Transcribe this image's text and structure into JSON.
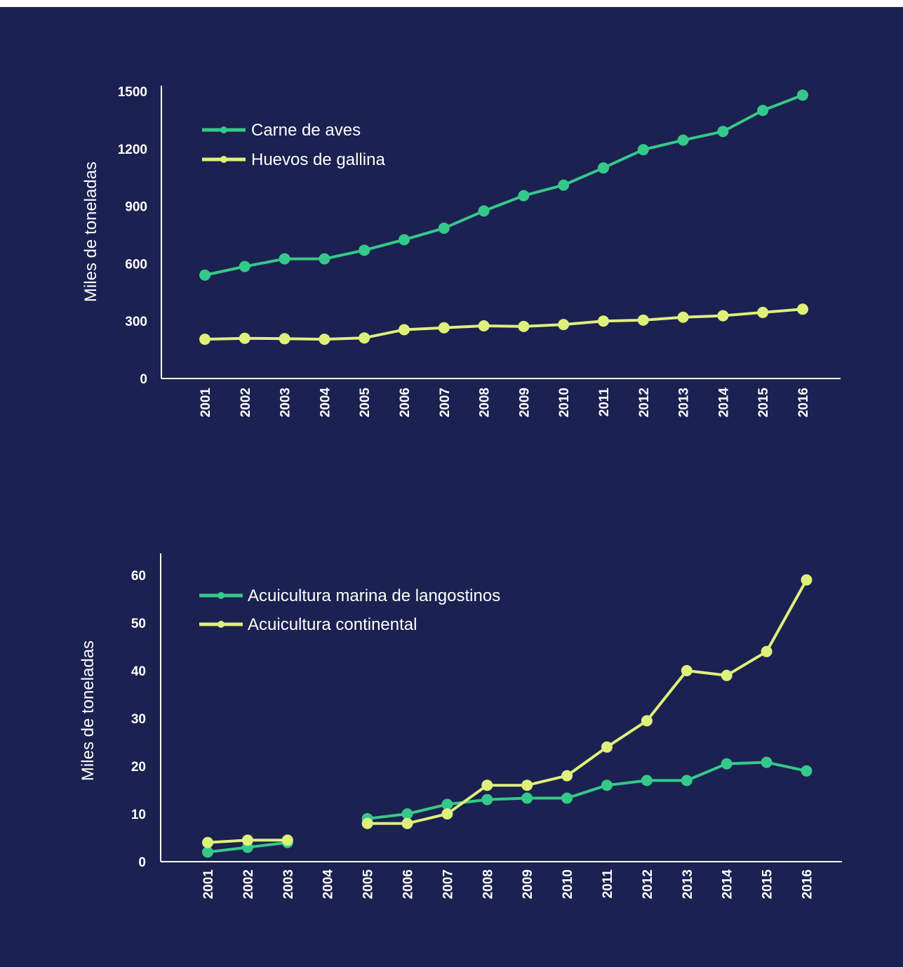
{
  "colors": {
    "background": "#1b2150",
    "axis": "#ffffff",
    "green": "#34c98a",
    "yellow": "#dff07a"
  },
  "chart_data": [
    {
      "type": "line",
      "title": "",
      "xlabel": "",
      "ylabel": "Miles de toneladas",
      "ylim": [
        0,
        1500
      ],
      "yticks": [
        "0",
        "300",
        "600",
        "900",
        "1200",
        "1500"
      ],
      "x": [
        "2001",
        "2002",
        "2003",
        "2004",
        "2005",
        "2006",
        "2007",
        "2008",
        "2009",
        "2010",
        "2011",
        "2012",
        "2013",
        "2014",
        "2015",
        "2016"
      ],
      "legend_position": "top-left",
      "grid": false,
      "series": [
        {
          "name": "Carne de aves",
          "color": "#34c98a",
          "values": [
            540,
            585,
            625,
            625,
            670,
            725,
            785,
            875,
            955,
            1010,
            1100,
            1195,
            1245,
            1290,
            1400,
            1480
          ]
        },
        {
          "name": "Huevos de gallina",
          "color": "#dff07a",
          "values": [
            205,
            210,
            208,
            205,
            212,
            255,
            265,
            275,
            272,
            282,
            300,
            305,
            320,
            328,
            345,
            362
          ]
        }
      ]
    },
    {
      "type": "line",
      "title": "",
      "xlabel": "",
      "ylabel": "Miles de toneladas",
      "ylim": [
        0,
        60
      ],
      "yticks": [
        "0",
        "10",
        "20",
        "30",
        "40",
        "50",
        "60"
      ],
      "x": [
        "2001",
        "2002",
        "2003",
        "2004",
        "2005",
        "2006",
        "2007",
        "2008",
        "2009",
        "2010",
        "2011",
        "2012",
        "2013",
        "2014",
        "2015",
        "2016"
      ],
      "legend_position": "top-left",
      "grid": false,
      "series": [
        {
          "name": "Acuicultura marina de langostinos",
          "color": "#34c98a",
          "values": [
            2,
            3,
            4,
            null,
            9,
            10,
            12,
            13,
            13.3,
            13.3,
            16,
            17,
            17,
            20.5,
            20.8,
            19
          ]
        },
        {
          "name": "Acuicultura continental",
          "color": "#dff07a",
          "values": [
            4,
            4.5,
            4.5,
            null,
            8,
            8,
            10,
            16,
            16,
            18,
            24,
            29.5,
            40,
            39,
            44,
            59
          ]
        }
      ]
    }
  ]
}
